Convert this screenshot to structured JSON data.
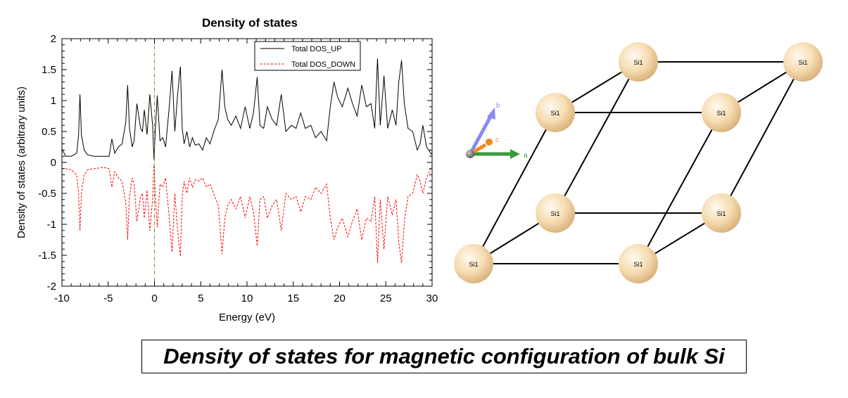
{
  "chart_data": {
    "type": "line",
    "title": "Density of states",
    "xlabel": "Energy (eV)",
    "ylabel": "Density of states (arbitrary units)",
    "xlim": [
      -10,
      30
    ],
    "ylim": [
      -2,
      2
    ],
    "xticks": [
      -10,
      -5,
      0,
      5,
      10,
      15,
      20,
      25,
      30
    ],
    "xtick_labels": [
      "-10",
      "-5",
      "0",
      "5",
      "10",
      "15",
      "20",
      "25",
      "30"
    ],
    "yticks": [
      2,
      1.5,
      1,
      0.5,
      0,
      -0.5,
      -1,
      -1.5,
      -2
    ],
    "ytick_labels": [
      "2",
      "1.5",
      "1",
      "0.5",
      "0",
      "-0.5",
      "-1",
      "-1.5",
      "-2"
    ],
    "fermi_level": 0,
    "grid": false,
    "legend_position": "top-right",
    "series": [
      {
        "name": "Total DOS_UP",
        "style": "solid",
        "color": "#000000",
        "x": [
          -10,
          -9.6,
          -9,
          -8.4,
          -8.2,
          -8.05,
          -7.9,
          -7.6,
          -7.2,
          -6.5,
          -5.5,
          -4.9,
          -4.6,
          -4.3,
          -3.9,
          -3.5,
          -3.1,
          -2.9,
          -2.7,
          -2.4,
          -2.2,
          -1.9,
          -1.5,
          -1.3,
          -1.1,
          -0.8,
          -0.5,
          -0.2,
          -0.05,
          0.1,
          0.3,
          0.6,
          0.9,
          1.2,
          1.6,
          1.9,
          2.2,
          2.5,
          2.8,
          3.0,
          3.2,
          3.5,
          3.8,
          4.1,
          4.4,
          4.8,
          5.2,
          5.6,
          6.0,
          6.4,
          6.9,
          7.3,
          7.6,
          7.9,
          8.3,
          8.8,
          9.3,
          9.8,
          10.3,
          10.7,
          11.1,
          11.4,
          11.8,
          12.2,
          12.7,
          13.2,
          13.7,
          14.2,
          14.8,
          15.3,
          15.8,
          16.3,
          16.9,
          17.4,
          18.0,
          18.6,
          19.0,
          19.4,
          19.8,
          20.3,
          20.9,
          21.4,
          21.9,
          22.4,
          22.9,
          23.4,
          23.8,
          24.1,
          24.4,
          24.8,
          25.2,
          25.7,
          26.1,
          26.4,
          26.7,
          27.0,
          27.4,
          27.9,
          28.4,
          28.7,
          29.0,
          29.4,
          30
        ],
        "y": [
          0.22,
          0.1,
          0.1,
          0.15,
          0.45,
          1.1,
          0.45,
          0.2,
          0.12,
          0.1,
          0.1,
          0.1,
          0.38,
          0.15,
          0.25,
          0.3,
          0.65,
          1.25,
          0.55,
          0.25,
          0.35,
          0.95,
          0.55,
          0.5,
          0.85,
          0.45,
          1.1,
          0.6,
          0.05,
          0.55,
          1.08,
          0.35,
          0.4,
          0.25,
          0.9,
          1.48,
          0.5,
          1.1,
          1.55,
          0.55,
          0.3,
          0.5,
          0.25,
          0.4,
          0.28,
          0.3,
          0.2,
          0.4,
          0.3,
          0.5,
          0.7,
          1.5,
          0.9,
          0.7,
          0.6,
          0.75,
          0.55,
          0.9,
          0.55,
          0.8,
          1.38,
          0.6,
          0.55,
          0.9,
          0.7,
          0.6,
          1.1,
          0.5,
          0.6,
          0.55,
          0.8,
          0.55,
          0.6,
          0.4,
          0.5,
          0.35,
          0.9,
          1.3,
          1.05,
          0.9,
          1.2,
          0.95,
          0.75,
          1.25,
          0.9,
          0.95,
          0.55,
          1.68,
          0.6,
          1.4,
          0.55,
          0.85,
          0.6,
          1.3,
          1.65,
          0.95,
          0.55,
          0.5,
          0.2,
          0.3,
          0.6,
          0.25,
          0.12
        ]
      },
      {
        "name": "Total DOS_DOWN",
        "style": "dashed",
        "color": "#ff0000",
        "x": [
          -10,
          -9.6,
          -9,
          -8.4,
          -8.2,
          -8.05,
          -7.9,
          -7.6,
          -7.2,
          -6.5,
          -5.5,
          -4.9,
          -4.6,
          -4.3,
          -3.9,
          -3.5,
          -3.1,
          -2.9,
          -2.7,
          -2.4,
          -2.2,
          -1.9,
          -1.5,
          -1.3,
          -1.1,
          -0.8,
          -0.5,
          -0.2,
          -0.05,
          0.1,
          0.3,
          0.6,
          0.9,
          1.2,
          1.6,
          1.9,
          2.2,
          2.5,
          2.8,
          3.0,
          3.2,
          3.5,
          3.8,
          4.1,
          4.4,
          4.8,
          5.2,
          5.6,
          6.0,
          6.4,
          6.9,
          7.3,
          7.6,
          7.9,
          8.3,
          8.8,
          9.3,
          9.8,
          10.3,
          10.7,
          11.1,
          11.4,
          11.8,
          12.2,
          12.7,
          13.2,
          13.7,
          14.2,
          14.8,
          15.3,
          15.8,
          16.3,
          16.9,
          17.4,
          18.0,
          18.6,
          19.0,
          19.4,
          19.8,
          20.3,
          20.9,
          21.4,
          21.9,
          22.4,
          22.9,
          23.4,
          23.8,
          24.1,
          24.4,
          24.8,
          25.2,
          25.7,
          26.1,
          26.4,
          26.7,
          27.0,
          27.4,
          27.9,
          28.4,
          28.7,
          29.0,
          29.4,
          30
        ],
        "y": [
          -0.1,
          -0.1,
          -0.12,
          -0.2,
          -0.5,
          -1.1,
          -0.5,
          -0.2,
          -0.12,
          -0.1,
          -0.08,
          -0.1,
          -0.4,
          -0.15,
          -0.25,
          -0.3,
          -0.65,
          -1.25,
          -0.55,
          -0.25,
          -0.35,
          -0.95,
          -0.55,
          -0.5,
          -0.9,
          -0.45,
          -1.1,
          -0.6,
          -0.02,
          -0.55,
          -1.05,
          -0.35,
          -0.4,
          -0.25,
          -0.9,
          -1.45,
          -0.5,
          -1.1,
          -1.52,
          -0.55,
          -0.3,
          -0.5,
          -0.25,
          -0.4,
          -0.28,
          -0.3,
          -0.25,
          -0.4,
          -0.35,
          -0.5,
          -0.7,
          -1.48,
          -0.9,
          -0.7,
          -0.6,
          -0.75,
          -0.55,
          -0.9,
          -0.55,
          -0.8,
          -1.35,
          -0.6,
          -0.55,
          -0.9,
          -0.7,
          -0.6,
          -1.1,
          -0.5,
          -0.6,
          -0.55,
          -0.8,
          -0.55,
          -0.6,
          -0.4,
          -0.5,
          -0.35,
          -0.9,
          -1.25,
          -1.05,
          -0.9,
          -1.2,
          -0.95,
          -0.75,
          -1.25,
          -0.9,
          -0.95,
          -0.55,
          -1.62,
          -0.6,
          -1.4,
          -0.55,
          -0.85,
          -0.6,
          -1.3,
          -1.62,
          -0.95,
          -0.55,
          -0.5,
          -0.2,
          -0.3,
          -0.5,
          -0.25,
          -0.05
        ]
      }
    ]
  },
  "lattice": {
    "atom_label": "Si1",
    "atom_color": "#f5d9a8",
    "axes": {
      "a": "a",
      "b": "b",
      "c": "c"
    },
    "axis_colors": {
      "a": "#3a9a3a",
      "b": "#8a8aee",
      "c": "#ee8a1a"
    }
  },
  "caption": "Density of states for magnetic configuration of bulk Si"
}
